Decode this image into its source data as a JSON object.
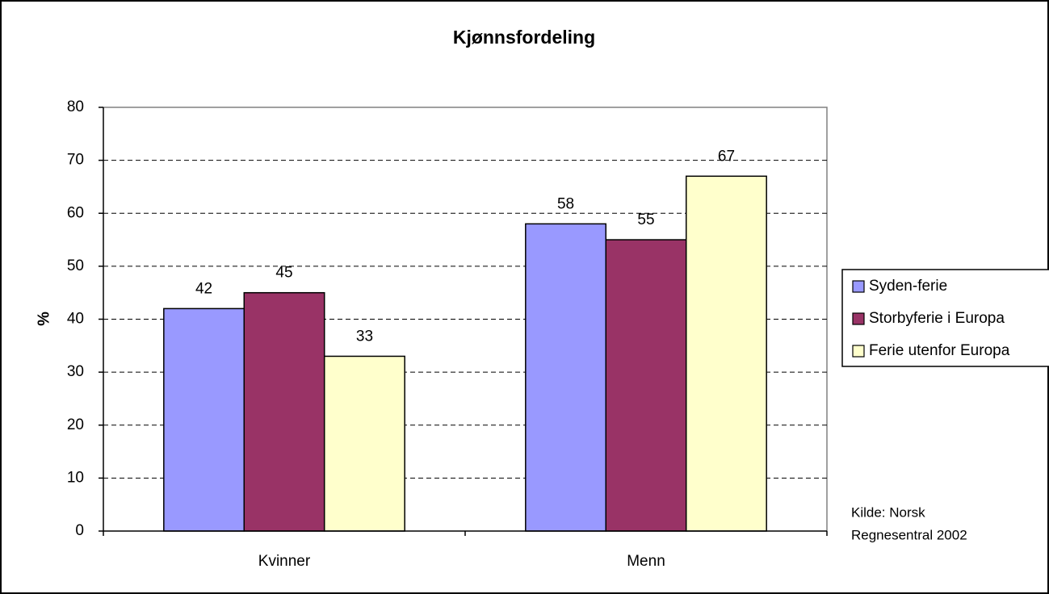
{
  "chart_data": {
    "type": "bar",
    "title": "Kjønnsfordeling",
    "y_label": "%",
    "categories": [
      "Kvinner",
      "Menn"
    ],
    "series": [
      {
        "name": "Syden-ferie",
        "color": "#9999ff",
        "values": [
          42,
          58
        ]
      },
      {
        "name": "Storbyferie i Europa",
        "color": "#993366",
        "values": [
          45,
          55
        ]
      },
      {
        "name": "Ferie utenfor Europa",
        "color": "#ffffcc",
        "values": [
          33,
          67
        ]
      }
    ],
    "ylim": [
      0,
      80
    ],
    "yticks": [
      0,
      10,
      20,
      30,
      40,
      50,
      60,
      70,
      80
    ],
    "grid": true,
    "legend": "right",
    "annotations": [
      "Kilde: Norsk",
      "Regnesentral 2002"
    ]
  }
}
